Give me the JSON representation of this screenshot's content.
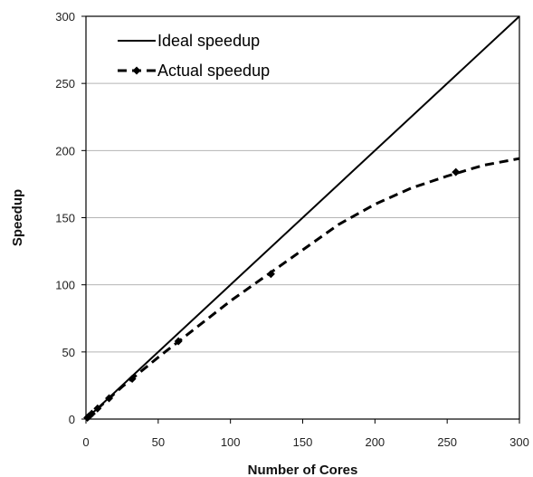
{
  "chart_data": {
    "type": "line",
    "xlabel": "Number of Cores",
    "ylabel": "Speedup",
    "xlim": [
      0,
      300
    ],
    "ylim": [
      0,
      300
    ],
    "xticks": [
      "0",
      "50",
      "100",
      "150",
      "200",
      "250",
      "300"
    ],
    "yticks": [
      "0",
      "50",
      "100",
      "150",
      "200",
      "250",
      "300"
    ],
    "grid": "horizontal",
    "legend_position": "top-left",
    "series": [
      {
        "name": "Ideal speedup",
        "style": "solid",
        "color": "#000000",
        "x": [
          0,
          300
        ],
        "y": [
          0,
          300
        ]
      },
      {
        "name": "Actual speedup",
        "style": "dashed",
        "marker": "diamond",
        "color": "#000000",
        "x": [
          1,
          2,
          4,
          8,
          16,
          32,
          64,
          128,
          256
        ],
        "y": [
          1,
          2,
          4,
          7.9,
          15.5,
          30,
          58,
          108,
          184
        ],
        "curve_x": [
          0,
          25,
          50,
          75,
          100,
          125,
          150,
          175,
          200,
          225,
          250,
          275,
          300
        ],
        "curve_y": [
          0,
          24,
          46,
          67,
          88,
          107,
          126,
          145,
          160,
          172,
          181,
          189,
          194
        ]
      }
    ]
  }
}
